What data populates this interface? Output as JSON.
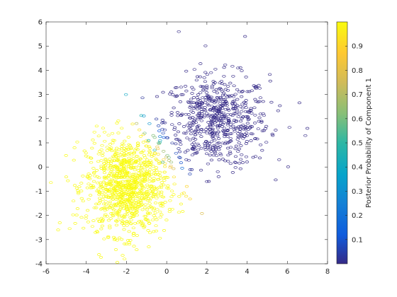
{
  "chart_data": {
    "type": "scatter",
    "xlim": [
      -6,
      8
    ],
    "ylim": [
      -4,
      6
    ],
    "x_ticks": [
      "-6",
      "-4",
      "-2",
      "0",
      "2",
      "4",
      "6",
      "8"
    ],
    "y_ticks": [
      "-4",
      "-3",
      "-2",
      "-1",
      "0",
      "1",
      "2",
      "3",
      "4",
      "5",
      "6"
    ],
    "grid": false,
    "marker": "open-circle",
    "colormap": "parula",
    "colorbar": {
      "label": "Posterior Probability of Component 1",
      "range": [
        0,
        1
      ],
      "ticks": [
        "0.1",
        "0.2",
        "0.3",
        "0.4",
        "0.5",
        "0.6",
        "0.7",
        "0.8",
        "0.9"
      ]
    },
    "clusters": [
      {
        "center": [
          2.5,
          1.9
        ],
        "spread": [
          1.3,
          0.95
        ],
        "count": 650,
        "dominant_posterior": 0.0
      },
      {
        "center": [
          -2.0,
          -0.8
        ],
        "spread": [
          1.0,
          1.0
        ],
        "count": 1000,
        "dominant_posterior": 1.0
      }
    ],
    "outliers": [
      {
        "x": 0.6,
        "y": 5.6,
        "p": 0.0
      },
      {
        "x": 3.9,
        "y": 5.4,
        "p": 0.0
      },
      {
        "x": 7.0,
        "y": 1.6,
        "p": 0.0
      },
      {
        "x": 6.9,
        "y": 1.3,
        "p": 0.0
      },
      {
        "x": 4.3,
        "y": 0.4,
        "p": 0.0
      },
      {
        "x": -5.4,
        "y": -2.6,
        "p": 1.0
      },
      {
        "x": -2.1,
        "y": -3.8,
        "p": 1.0
      },
      {
        "x": 1.0,
        "y": -0.8,
        "p": 0.9
      },
      {
        "x": -1.1,
        "y": 1.4,
        "p": 0.6
      },
      {
        "x": -0.9,
        "y": 1.1,
        "p": 0.45
      },
      {
        "x": -1.5,
        "y": 1.8,
        "p": 0.7
      },
      {
        "x": -0.6,
        "y": 0.7,
        "p": 0.5
      },
      {
        "x": -0.2,
        "y": 0.2,
        "p": 0.55
      }
    ]
  }
}
